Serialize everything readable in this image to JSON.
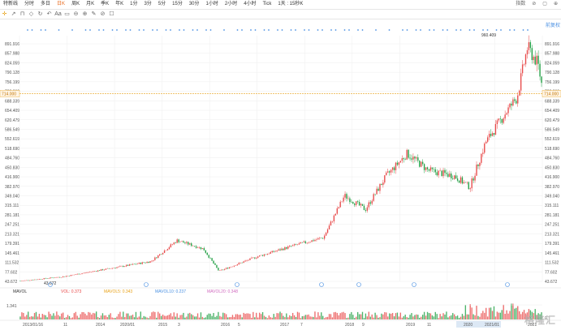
{
  "toolbar": {
    "tabs": [
      "特新线",
      "分时",
      "多日",
      "日K",
      "周K",
      "月K",
      "季K",
      "年K",
      "1分",
      "3分",
      "5分",
      "15分",
      "30分",
      "1小时",
      "2小时",
      "4小时",
      "Tick",
      "1天 : 15秒K"
    ],
    "active_index": 3,
    "right": [
      "指数",
      "⊘",
      "▢",
      "⊕"
    ]
  },
  "tools": {
    "items": [
      "✛",
      "↗",
      "⊓",
      "◇",
      "↻",
      "↶",
      "Aa",
      "▭",
      "⊖",
      "⊕",
      "✎",
      "⊘",
      "☐"
    ]
  },
  "restore_label": "前复权",
  "price_axis": [
    "891.916",
    "857.988",
    "824.059",
    "790.128",
    "756.199",
    "722.269",
    "688.339",
    "654.409",
    "620.479",
    "586.549",
    "552.619",
    "518.690",
    "484.760",
    "450.830",
    "416.900",
    "382.970",
    "349.040",
    "315.111",
    "281.181",
    "247.251",
    "213.321",
    "179.391",
    "145.461",
    "111.532",
    "77.602",
    "43.672"
  ],
  "current_price": "714.000",
  "high_label": "960.409",
  "low_label": "43.672",
  "indicator": {
    "name": "MAVOL",
    "vol": "VOL: 0.373",
    "mavol5": "MAVOL5: 0.343",
    "mavol10": "MAVOL10: 0.237",
    "mavol20": "MAVOL20: 0.348",
    "axis_top": "1.341",
    "axis_bottom": "0"
  },
  "time_axis": [
    "2013/01/16",
    "11",
    "2014",
    "2020/01",
    "2015",
    "3",
    "2016",
    "5",
    "2017",
    "7",
    "2018",
    "9",
    "2019",
    "11",
    "2020",
    "2021/01",
    "2021"
  ],
  "colors": {
    "up": "#e84a4a",
    "down": "#22a045",
    "grid": "#eeeeee",
    "price_line": "#e8a21a"
  },
  "logo_text": "格隆汇"
}
